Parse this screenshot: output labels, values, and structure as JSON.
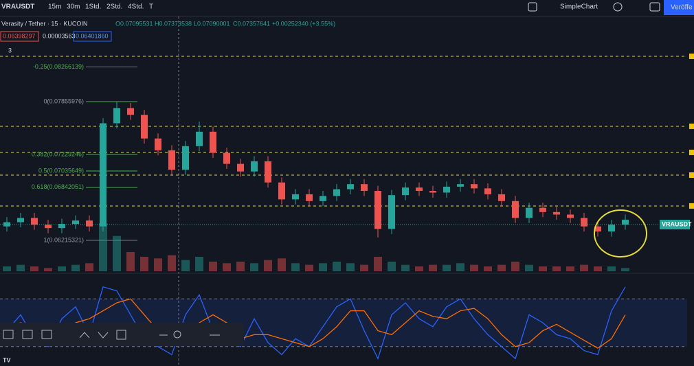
{
  "toolbar": {
    "symbol": "VRAUSDT",
    "intervals": [
      "15m",
      "30m",
      "1Std.",
      "2Std.",
      "4Std.",
      "T"
    ],
    "layout_name": "SimpleChart",
    "publish": "Veröffe"
  },
  "legend": {
    "title": "Verasity / Tether · 15 · KUCOIN",
    "open": "O0.07095531",
    "high": "H0.07373538",
    "low": "L0.07090001",
    "close": "C0.07357641",
    "change": "+0.00252340 (+3.55%)",
    "bid": "0.06398297",
    "spread": "0.00003563",
    "ask": "0.06401860",
    "indicators_count": "3"
  },
  "price_tag": "VRAUSDT",
  "current_price": 0.0640186,
  "ylim": [
    0.0585,
    0.0853
  ],
  "fib_levels": [
    {
      "label": "-0.25(0.08266139)",
      "price": 0.08266139
    },
    {
      "label": "0(0.07855976)",
      "price": 0.07855976
    },
    {
      "label": "0.382(0.07229246)",
      "price": 0.07229246
    },
    {
      "label": "0.5(0.07035649)",
      "price": 0.07035649
    },
    {
      "label": "0.618(0.06842051)",
      "price": 0.06842051
    },
    {
      "label": "1(0.06215321)",
      "price": 0.06215321
    }
  ],
  "alert_lines": [
    0.08392,
    0.07564,
    0.07255,
    0.06987,
    0.06622
  ],
  "candles": {
    "open": [
      0.0638,
      0.0643,
      0.0648,
      0.064,
      0.0636,
      0.0641,
      0.0645,
      0.0638,
      0.076,
      0.0778,
      0.077,
      0.0742,
      0.0728,
      0.0705,
      0.0733,
      0.075,
      0.0725,
      0.0712,
      0.0703,
      0.0715,
      0.069,
      0.067,
      0.0676,
      0.0668,
      0.0674,
      0.0682,
      0.0688,
      0.068,
      0.0635,
      0.0675,
      0.0684,
      0.068,
      0.0678,
      0.0685,
      0.0688,
      0.0683,
      0.0676,
      0.0668,
      0.0648,
      0.066,
      0.0655,
      0.0652,
      0.0648,
      0.0638,
      0.0632,
      0.064
    ],
    "high": [
      0.0649,
      0.0654,
      0.0654,
      0.0646,
      0.0647,
      0.0651,
      0.0651,
      0.0766,
      0.0786,
      0.0784,
      0.0776,
      0.0748,
      0.0734,
      0.0739,
      0.0762,
      0.0756,
      0.0731,
      0.0718,
      0.0721,
      0.0721,
      0.0696,
      0.0682,
      0.0682,
      0.068,
      0.0688,
      0.0694,
      0.0694,
      0.0686,
      0.0681,
      0.069,
      0.069,
      0.0686,
      0.0691,
      0.0694,
      0.0694,
      0.0689,
      0.0682,
      0.0674,
      0.0666,
      0.0666,
      0.0661,
      0.0658,
      0.0654,
      0.0644,
      0.0646,
      0.0652
    ],
    "low": [
      0.0632,
      0.0637,
      0.0634,
      0.063,
      0.063,
      0.0635,
      0.0632,
      0.0632,
      0.0754,
      0.0764,
      0.0736,
      0.0722,
      0.0699,
      0.0699,
      0.0727,
      0.0719,
      0.0706,
      0.0697,
      0.0697,
      0.0684,
      0.0664,
      0.0664,
      0.0662,
      0.0662,
      0.0668,
      0.0676,
      0.0674,
      0.0625,
      0.0629,
      0.0669,
      0.0674,
      0.0672,
      0.0672,
      0.0679,
      0.0677,
      0.067,
      0.0662,
      0.0642,
      0.0642,
      0.0649,
      0.0646,
      0.0642,
      0.0632,
      0.0626,
      0.0626,
      0.0634
    ],
    "close": [
      0.0643,
      0.0648,
      0.064,
      0.0636,
      0.0641,
      0.0645,
      0.0638,
      0.076,
      0.0778,
      0.077,
      0.0742,
      0.0728,
      0.0705,
      0.0733,
      0.075,
      0.0725,
      0.0712,
      0.0703,
      0.0715,
      0.069,
      0.067,
      0.0676,
      0.0668,
      0.0674,
      0.0682,
      0.0688,
      0.068,
      0.0635,
      0.0675,
      0.0684,
      0.068,
      0.0678,
      0.0685,
      0.0688,
      0.0683,
      0.0676,
      0.0668,
      0.0648,
      0.066,
      0.0655,
      0.0652,
      0.0648,
      0.0638,
      0.0632,
      0.064,
      0.0646
    ]
  },
  "volume": {
    "max": 30,
    "values": [
      3,
      4,
      3,
      2,
      3,
      4,
      5,
      30,
      22,
      12,
      9,
      8,
      10,
      7,
      9,
      6,
      5,
      6,
      5,
      7,
      8,
      5,
      4,
      5,
      6,
      5,
      4,
      9,
      6,
      4,
      3,
      4,
      4,
      5,
      4,
      3,
      4,
      6,
      4,
      3,
      3,
      3,
      4,
      3,
      3,
      2
    ]
  },
  "stochastic": {
    "ylim": [
      0,
      100
    ],
    "bands": [
      80,
      20
    ],
    "series": [
      {
        "color": "#2962ff",
        "values": [
          40,
          60,
          30,
          20,
          55,
          70,
          35,
          95,
          90,
          60,
          30,
          20,
          10,
          60,
          85,
          40,
          30,
          20,
          55,
          25,
          10,
          30,
          20,
          45,
          70,
          80,
          40,
          5,
          60,
          75,
          55,
          45,
          70,
          80,
          55,
          35,
          20,
          5,
          60,
          50,
          35,
          30,
          15,
          10,
          65,
          95
        ]
      },
      {
        "color": "#ff6d00",
        "values": [
          45,
          50,
          45,
          35,
          35,
          50,
          55,
          65,
          75,
          80,
          60,
          40,
          25,
          30,
          50,
          60,
          50,
          30,
          35,
          35,
          30,
          25,
          20,
          30,
          45,
          65,
          65,
          40,
          35,
          50,
          65,
          58,
          55,
          65,
          68,
          55,
          35,
          20,
          25,
          40,
          48,
          38,
          28,
          18,
          30,
          60
        ]
      }
    ]
  }
}
